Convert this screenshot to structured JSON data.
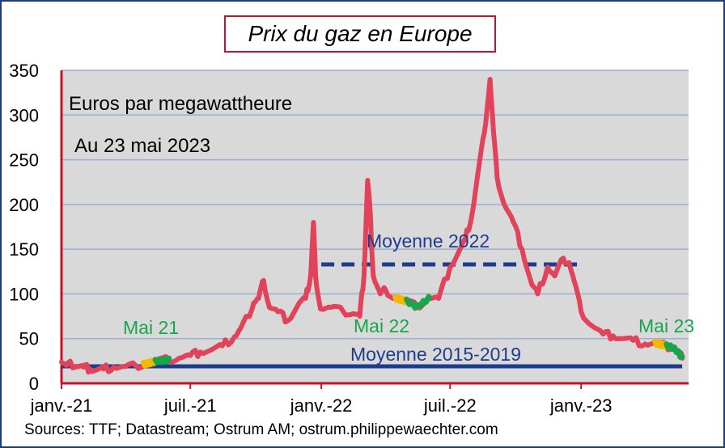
{
  "chart_data": {
    "type": "line",
    "title": "Prix du gaz en Europe",
    "annotations": {
      "unit": "Euros par megawattheure",
      "date": "Au 23 mai 2023",
      "may_labels": [
        "Mai 21",
        "Mai 22",
        "Mai 23"
      ],
      "avg_2022_label": "Moyenne 2022",
      "avg_2015_label": "Moyenne 2015-2019"
    },
    "source": "Sources: TTF;  Datastream;  Ostrum  AM; ostrum.philippewaechter.com",
    "x_ticks": [
      "janv.-21",
      "juil.-21",
      "janv.-22",
      "juil.-22",
      "janv.-23"
    ],
    "x_tick_dates": [
      "2021-01-01",
      "2021-07-01",
      "2022-01-01",
      "2022-07-01",
      "2023-01-01"
    ],
    "y_ticks": [
      0,
      50,
      100,
      150,
      200,
      250,
      300,
      350
    ],
    "ylim": [
      0,
      350
    ],
    "xlim": [
      "2021-01-01",
      "2023-06-01"
    ],
    "grid": true,
    "colors": {
      "price": "#e0435a",
      "may_early": "#f5b800",
      "may_late": "#19a64a",
      "avg": "#1f3b8c",
      "plot_bg": "#d9d9d9",
      "grid": "#9aaed3",
      "axis": "#c0142f",
      "title_border": "#c0142f",
      "frame": "#1f3b73"
    },
    "series": [
      {
        "name": "TTF",
        "x": [
          "2021-01-01",
          "2021-01-08",
          "2021-01-15",
          "2021-01-22",
          "2021-02-01",
          "2021-02-10",
          "2021-02-20",
          "2021-03-01",
          "2021-03-15",
          "2021-04-01",
          "2021-04-15",
          "2021-05-01",
          "2021-05-15",
          "2021-06-01",
          "2021-06-15",
          "2021-07-01",
          "2021-07-15",
          "2021-08-01",
          "2021-08-15",
          "2021-09-01",
          "2021-09-10",
          "2021-09-20",
          "2021-09-28",
          "2021-10-05",
          "2021-10-12",
          "2021-10-20",
          "2021-11-01",
          "2021-11-15",
          "2021-12-01",
          "2021-12-10",
          "2021-12-17",
          "2021-12-21",
          "2021-12-24",
          "2021-12-31",
          "2022-01-15",
          "2022-02-01",
          "2022-02-15",
          "2022-02-24",
          "2022-03-02",
          "2022-03-07",
          "2022-03-10",
          "2022-03-15",
          "2022-03-25",
          "2022-04-01",
          "2022-04-15",
          "2022-05-01",
          "2022-05-15",
          "2022-06-01",
          "2022-06-15",
          "2022-07-01",
          "2022-07-15",
          "2022-07-22",
          "2022-08-01",
          "2022-08-10",
          "2022-08-18",
          "2022-08-26",
          "2022-08-31",
          "2022-09-05",
          "2022-09-15",
          "2022-09-28",
          "2022-10-10",
          "2022-10-24",
          "2022-11-01",
          "2022-11-15",
          "2022-11-25",
          "2022-12-07",
          "2022-12-15",
          "2022-12-22",
          "2023-01-01",
          "2023-01-15",
          "2023-02-01",
          "2023-02-15",
          "2023-03-01",
          "2023-03-15",
          "2023-04-01",
          "2023-04-15",
          "2023-05-01",
          "2023-05-10",
          "2023-05-17",
          "2023-05-23"
        ],
        "values": [
          24,
          20,
          21,
          19,
          18,
          16,
          15,
          16,
          18,
          19,
          20,
          22,
          25,
          26,
          28,
          31,
          35,
          38,
          42,
          52,
          62,
          75,
          90,
          95,
          115,
          85,
          80,
          70,
          90,
          95,
          120,
          180,
          120,
          83,
          85,
          80,
          78,
          75,
          120,
          227,
          200,
          120,
          100,
          105,
          95,
          92,
          85,
          95,
          95,
          130,
          150,
          160,
          190,
          240,
          280,
          340,
          280,
          230,
          200,
          180,
          150,
          110,
          100,
          130,
          120,
          140,
          135,
          115,
          80,
          65,
          55,
          53,
          50,
          48,
          44,
          45,
          42,
          40,
          35,
          28
        ]
      }
    ],
    "may_segments": [
      {
        "label": "Mai 21",
        "from": "2021-04-26",
        "split": "2021-05-13",
        "to": "2021-06-01"
      },
      {
        "label": "Mai 22",
        "from": "2022-04-15",
        "split": "2022-05-01",
        "to": "2022-06-01"
      },
      {
        "label": "Mai 23",
        "from": "2023-04-15",
        "split": "2023-05-01",
        "to": "2023-05-23"
      }
    ],
    "averages": [
      {
        "label": "Moyenne 2022",
        "value": 133,
        "from": "2022-01-01",
        "to": "2022-12-31",
        "style": "dashed"
      },
      {
        "label": "Moyenne 2015-2019",
        "value": 19,
        "from": "2021-01-01",
        "to": "2023-05-23",
        "style": "solid"
      }
    ]
  }
}
